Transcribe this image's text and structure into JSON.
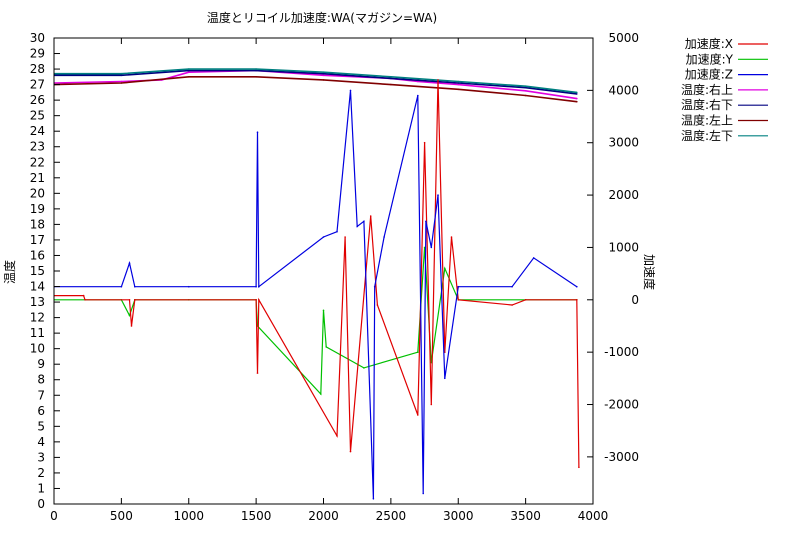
{
  "chart_data": {
    "type": "line",
    "title": "温度とリコイル加速度:WA(マガジン=WA)",
    "xlabel": "",
    "ylabel": "温度",
    "y2label": "加速度",
    "xlim": [
      0,
      4000
    ],
    "ylim": [
      0,
      30
    ],
    "y2lim": [
      -3900,
      5000
    ],
    "x_ticks": [
      0,
      500,
      1000,
      1500,
      2000,
      2500,
      3000,
      3500,
      4000
    ],
    "y_ticks": [
      0,
      1,
      2,
      3,
      4,
      5,
      6,
      7,
      8,
      9,
      10,
      11,
      12,
      13,
      14,
      15,
      16,
      17,
      18,
      19,
      20,
      21,
      22,
      23,
      24,
      25,
      26,
      27,
      28,
      29,
      30
    ],
    "y2_ticks": [
      -3000,
      -2000,
      -1000,
      0,
      1000,
      2000,
      3000,
      4000,
      5000
    ],
    "grid": false,
    "legend_position": "top-right-outside",
    "series": [
      {
        "name": "加速度:X",
        "axis": "y2",
        "color": "#e00000",
        "x": [
          0,
          220,
          230,
          560,
          575,
          600,
          1500,
          1510,
          1520,
          2100,
          2160,
          2200,
          2350,
          2400,
          2700,
          2750,
          2800,
          2850,
          2900,
          2950,
          3000,
          3400,
          3500,
          3880,
          3895
        ],
        "y": [
          80,
          80,
          0,
          0,
          -500,
          0,
          0,
          -1400,
          0,
          -2600,
          1200,
          -2900,
          1600,
          -100,
          -2200,
          3000,
          -2000,
          4200,
          -1000,
          1200,
          0,
          -100,
          0,
          0,
          -3200
        ]
      },
      {
        "name": "加速度:Y",
        "axis": "y2",
        "color": "#00c000",
        "x": [
          0,
          500,
          560,
          600,
          1000,
          1500,
          1510,
          1980,
          2000,
          2020,
          2300,
          2700,
          2750,
          2800,
          2900,
          3000,
          3500,
          3880
        ],
        "y": [
          0,
          0,
          -300,
          0,
          0,
          0,
          -500,
          -1800,
          -200,
          -900,
          -1300,
          -1000,
          1000,
          -1200,
          600,
          0,
          0,
          0
        ]
      },
      {
        "name": "加速度:Z",
        "axis": "y2",
        "color": "#0000e0",
        "x": [
          0,
          500,
          560,
          600,
          1000,
          1500,
          1510,
          1520,
          2000,
          2100,
          2200,
          2250,
          2300,
          2370,
          2380,
          2450,
          2700,
          2740,
          2760,
          2800,
          2850,
          2900,
          3000,
          3400,
          3560,
          3880
        ],
        "y": [
          250,
          250,
          700,
          250,
          250,
          250,
          3200,
          250,
          1200,
          1300,
          4000,
          1400,
          1500,
          -3800,
          250,
          1200,
          3900,
          -3700,
          1500,
          1000,
          2000,
          -1500,
          250,
          250,
          800,
          250
        ]
      },
      {
        "name": "温度:右上",
        "axis": "y",
        "color": "#e000e0",
        "x": [
          0,
          500,
          800,
          1000,
          1500,
          2000,
          2500,
          2700,
          3000,
          3500,
          3880
        ],
        "y": [
          27.1,
          27.2,
          27.3,
          27.8,
          27.9,
          27.6,
          27.4,
          27.2,
          27.0,
          26.6,
          26.1
        ]
      },
      {
        "name": "温度:右下",
        "axis": "y",
        "color": "#000080",
        "x": [
          0,
          500,
          1000,
          1500,
          2000,
          2500,
          3000,
          3500,
          3880
        ],
        "y": [
          27.6,
          27.6,
          27.9,
          27.9,
          27.7,
          27.4,
          27.1,
          26.8,
          26.4
        ]
      },
      {
        "name": "温度:左上",
        "axis": "y",
        "color": "#800000",
        "x": [
          0,
          500,
          1000,
          1500,
          2000,
          2500,
          3000,
          3500,
          3880
        ],
        "y": [
          27.0,
          27.1,
          27.5,
          27.5,
          27.3,
          27.0,
          26.7,
          26.3,
          25.9
        ]
      },
      {
        "name": "温度:左下",
        "axis": "y",
        "color": "#008080",
        "x": [
          0,
          500,
          1000,
          1500,
          2000,
          2500,
          3000,
          3500,
          3880
        ],
        "y": [
          27.7,
          27.7,
          28.0,
          28.0,
          27.8,
          27.5,
          27.2,
          26.9,
          26.5
        ]
      }
    ]
  }
}
